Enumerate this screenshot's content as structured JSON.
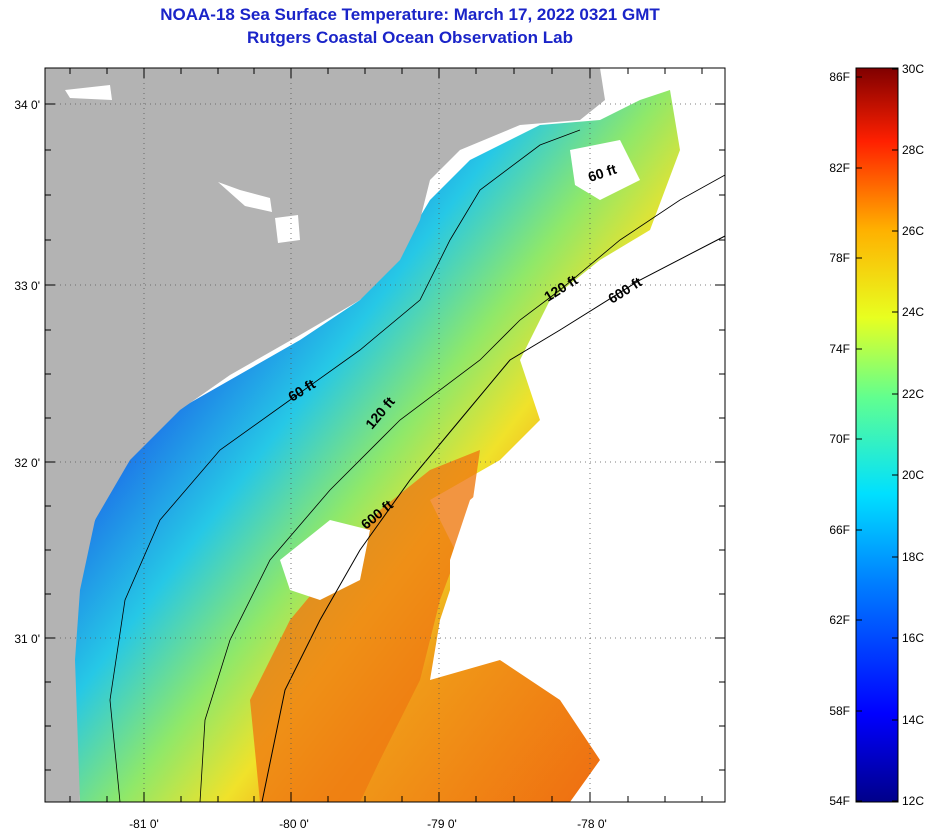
{
  "title": {
    "line1": "NOAA-18 Sea Surface Temperature:  March 17, 2022 0321 GMT",
    "line2": "Rutgers Coastal Ocean Observation Lab"
  },
  "axes": {
    "x_ticks": [
      "-81 0'",
      "-80 0'",
      "-79 0'",
      "-78 0'"
    ],
    "y_ticks": [
      "34 0'",
      "33 0'",
      "32 0'",
      "31 0'"
    ]
  },
  "contours": {
    "c60": "60 ft",
    "c120a": "120 ft",
    "c600a": "600 ft",
    "c60b": "60 ft",
    "c120b": "120 ft",
    "c600b": "600 ft"
  },
  "colorbar": {
    "fahrenheit": [
      "86F",
      "82F",
      "78F",
      "74F",
      "70F",
      "66F",
      "62F",
      "58F",
      "54F"
    ],
    "celsius": [
      "30C",
      "28C",
      "26C",
      "24C",
      "22C",
      "20C",
      "18C",
      "16C",
      "14C",
      "12C"
    ]
  },
  "colors": {
    "title": "#1a24c8",
    "land": "#b3b3b3",
    "cloud": "#ffffff",
    "cold": "#1030c8",
    "warm": "#f07010"
  }
}
